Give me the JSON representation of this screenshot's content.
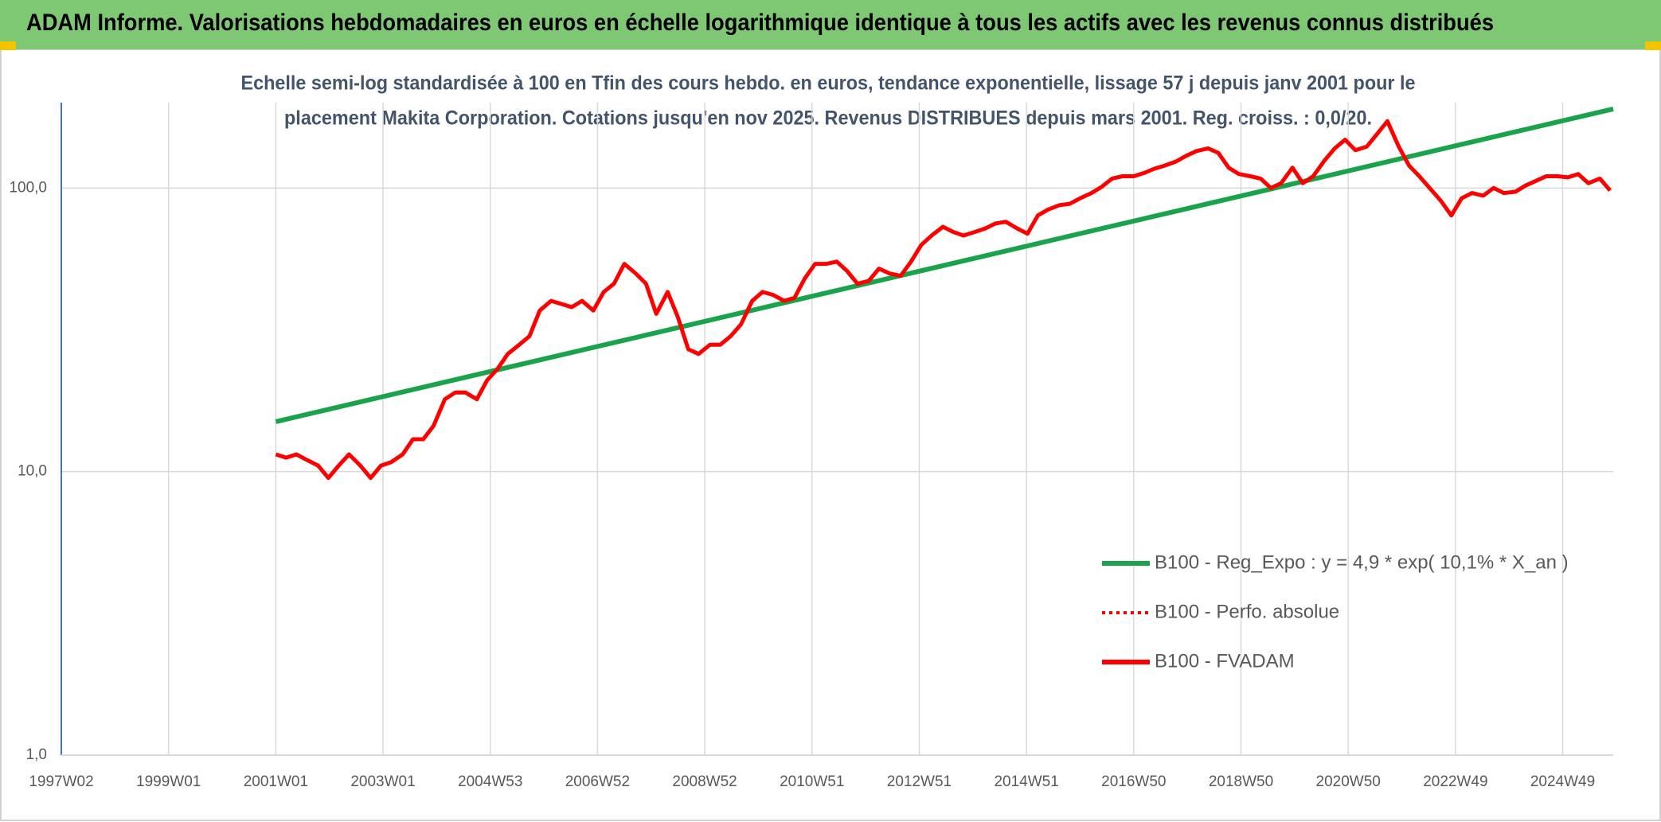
{
  "chart_data": {
    "type": "line",
    "title": "ADAM Informe. Valorisations hebdomadaires en euros en échelle logarithmique identique à tous les actifs avec les revenus connus distribués",
    "subtitle": [
      "Echelle semi-log standardisée à 100 en Tfin des cours hebdo. en euros, tendance exponentielle, lissage 57 j depuis janv 2001 pour le",
      "placement Makita Corporation. Cotations jusqu'en nov 2025. Revenus DISTRIBUES depuis mars 2001. Reg. croiss. : 0,0/20."
    ],
    "log_y": true,
    "grid": true,
    "legend": "lower right",
    "xlim": [
      0,
      1505
    ],
    "xticks": [
      {
        "value": 0,
        "label": "1997W02"
      },
      {
        "value": 104,
        "label": "1999W01"
      },
      {
        "value": 208,
        "label": "2001W01"
      },
      {
        "value": 312,
        "label": "2003W01"
      },
      {
        "value": 416,
        "label": "2004W53"
      },
      {
        "value": 520,
        "label": "2006W52"
      },
      {
        "value": 624,
        "label": "2008W52"
      },
      {
        "value": 728,
        "label": "2010W51"
      },
      {
        "value": 832,
        "label": "2012W51"
      },
      {
        "value": 936,
        "label": "2014W51"
      },
      {
        "value": 1040,
        "label": "2016W50"
      },
      {
        "value": 1144,
        "label": "2018W50"
      },
      {
        "value": 1248,
        "label": "2020W50"
      },
      {
        "value": 1352,
        "label": "2022W49"
      },
      {
        "value": 1456,
        "label": "2024W49"
      }
    ],
    "ylim": [
      1,
      200
    ],
    "yticks": [
      {
        "value": 1,
        "label": "1,0"
      },
      {
        "value": 10,
        "label": "10,0"
      },
      {
        "value": 100,
        "label": "100,0"
      }
    ],
    "series": [
      {
        "name": "B100 - Reg_Expo : y = 4,9 * exp( 10,1% *  X_an )",
        "color": "#1aa34a",
        "style": "solid",
        "x": [
          208,
          1505
        ],
        "values": [
          15,
          190
        ]
      },
      {
        "name": "B100 - Perfo. absolue",
        "color": "#ff0000",
        "style": "dotted"
      },
      {
        "name": "B100 - FVADAM",
        "color": "#ff0000",
        "style": "solid",
        "x": [
          208,
          218,
          228,
          238,
          249,
          259,
          269,
          279,
          290,
          300,
          310,
          320,
          331,
          341,
          351,
          361,
          372,
          382,
          392,
          403,
          413,
          423,
          433,
          444,
          454,
          464,
          475,
          485,
          495,
          505,
          516,
          526,
          536,
          546,
          557,
          567,
          577,
          588,
          598,
          608,
          618,
          629,
          639,
          649,
          659,
          670,
          680,
          690,
          701,
          711,
          721,
          731,
          742,
          752,
          762,
          772,
          783,
          793,
          803,
          814,
          824,
          834,
          844,
          855,
          865,
          875,
          886,
          896,
          906,
          916,
          927,
          937,
          947,
          957,
          968,
          978,
          988,
          999,
          1009,
          1019,
          1029,
          1040,
          1050,
          1060,
          1070,
          1081,
          1091,
          1101,
          1112,
          1122,
          1132,
          1142,
          1153,
          1163,
          1173,
          1183,
          1194,
          1204,
          1214,
          1225,
          1235,
          1245,
          1255,
          1266,
          1276,
          1286,
          1297,
          1307,
          1317,
          1327,
          1338,
          1348,
          1358,
          1368,
          1379,
          1389,
          1399,
          1410,
          1420,
          1430,
          1440,
          1451,
          1461,
          1471,
          1481,
          1492,
          1502
        ],
        "values": [
          11.5,
          11.2,
          11.5,
          11,
          10.5,
          9.5,
          10.5,
          11.5,
          10.5,
          9.5,
          10.5,
          10.8,
          11.5,
          13,
          13,
          14.5,
          18,
          19,
          19,
          18,
          21,
          23,
          26,
          28,
          30,
          37,
          40,
          39,
          38,
          40,
          37,
          43,
          46,
          54,
          50,
          46,
          36,
          43,
          35,
          27,
          26,
          28,
          28,
          30,
          33,
          40,
          43,
          42,
          40,
          41,
          48,
          54,
          54,
          55,
          51,
          46,
          47,
          52,
          50,
          49,
          55,
          63,
          68,
          73,
          70,
          68,
          70,
          72,
          75,
          76,
          72,
          69,
          80,
          84,
          87,
          88,
          92,
          96,
          101,
          108,
          110,
          110,
          113,
          117,
          120,
          124,
          130,
          135,
          138,
          133,
          118,
          112,
          110,
          108,
          100,
          104,
          118,
          104,
          110,
          125,
          138,
          148,
          136,
          140,
          155,
          172,
          140,
          120,
          110,
          100,
          90,
          80,
          92,
          96,
          94,
          100,
          96,
          97,
          102,
          106,
          110,
          110,
          109,
          112,
          104,
          108,
          98
        ]
      }
    ]
  }
}
